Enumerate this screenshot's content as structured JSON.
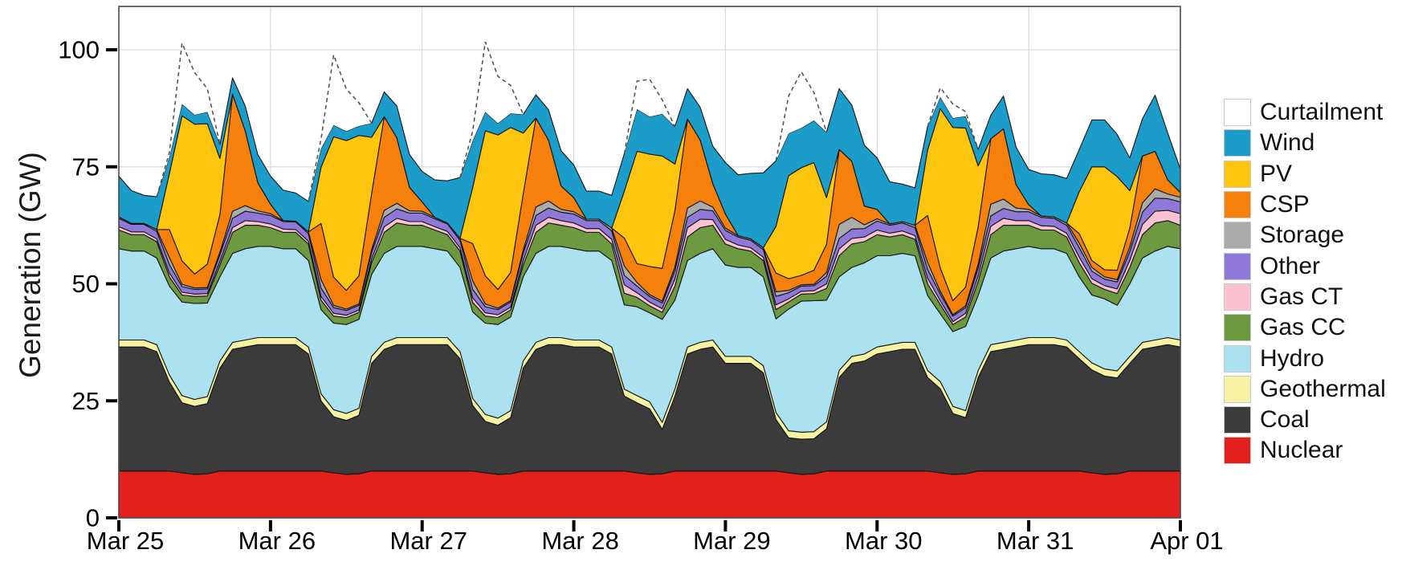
{
  "figure_title": "",
  "chart_data": {
    "type": "area",
    "subtype": "stacked-area-dispatch",
    "title": "",
    "xlabel": "",
    "ylabel": "Generation (GW)",
    "x_unit": "hours, 2-hour resolution over 7 days",
    "x_start_hour": 0,
    "x_step_hours": 2,
    "x_tick_labels": [
      "Mar 25",
      "Mar 26",
      "Mar 27",
      "Mar 28",
      "Mar 29",
      "Mar 30",
      "Mar 31",
      "Apr 01"
    ],
    "y_ticks": [
      0,
      25,
      50,
      75,
      100
    ],
    "y_tick_labels": [
      "0",
      "25",
      "50",
      "75",
      "100"
    ],
    "ylim": [
      0,
      109
    ],
    "grid": "on",
    "legend_position": "right-outside",
    "colors": {
      "area_outline": "#141414",
      "dashed_curtailment_line": "#555555",
      "gridline": "#d9d9d9",
      "frame": "#4a4a4a",
      "tick": "#000000"
    },
    "dashed_line_meaning": "top boundary of curtailment (available VRE above served stack)",
    "series": [
      {
        "name": "nuclear",
        "label": "Nuclear",
        "color": "#E4201C",
        "values": [
          10,
          10,
          10,
          10,
          10,
          9.6,
          9.3,
          9.4,
          10,
          10,
          10,
          10,
          10,
          10,
          10,
          10,
          10,
          9.6,
          9.3,
          9.4,
          10,
          10,
          10,
          10,
          10,
          10,
          10,
          10,
          10,
          9.6,
          9.3,
          9.4,
          10,
          10,
          10,
          10,
          10,
          10,
          10,
          10,
          10,
          9.6,
          9.3,
          9.4,
          10,
          10,
          10,
          10,
          10,
          10,
          10,
          10,
          10,
          9.6,
          9.3,
          9.4,
          10,
          10,
          10,
          10,
          10,
          10,
          10,
          10,
          10,
          9.6,
          9.3,
          9.4,
          10,
          10,
          10,
          10,
          10,
          10,
          10,
          10,
          10,
          9.6,
          9.3,
          9.4,
          10,
          10,
          10,
          10,
          10
        ]
      },
      {
        "name": "coal",
        "label": "Coal",
        "color": "#3B3B3B",
        "values": [
          26.5,
          26.5,
          26.5,
          25.5,
          19,
          15,
          14.5,
          15,
          22,
          26,
          26.5,
          27,
          27,
          27,
          27,
          25,
          15,
          12,
          11.5,
          12.5,
          23,
          26,
          27,
          27,
          27,
          27,
          27,
          24,
          14,
          11,
          10.5,
          12,
          22,
          26,
          27,
          27,
          26.5,
          26.5,
          26.5,
          25,
          16,
          15,
          14,
          9.5,
          16,
          25,
          26,
          26.5,
          23,
          23,
          23,
          21,
          11,
          7.5,
          7.5,
          7.5,
          9,
          20,
          23,
          23.5,
          25,
          25.5,
          26,
          26,
          20,
          18,
          13,
          12,
          20,
          25.5,
          26,
          26.5,
          27,
          27,
          27,
          26.5,
          24,
          22,
          21,
          20.5,
          23,
          26,
          26.5,
          27,
          26.5
        ]
      },
      {
        "name": "geothermal",
        "label": "Geothermal",
        "color": "#F8F3A3",
        "values": [
          1.5,
          1.5,
          1.5,
          1.5,
          1.5,
          1.5,
          1.5,
          1.5,
          1.5,
          1.5,
          1.5,
          1.5,
          1.5,
          1.5,
          1.5,
          1.5,
          1.5,
          1.5,
          1.5,
          1.5,
          1.5,
          1.5,
          1.5,
          1.5,
          1.5,
          1.5,
          1.5,
          1.5,
          1.5,
          1.5,
          1.5,
          1.5,
          1.5,
          1.5,
          1.5,
          1.5,
          1.5,
          1.5,
          1.5,
          1.5,
          1.5,
          1.5,
          1.5,
          1.5,
          1.5,
          1.5,
          1.5,
          1.5,
          1.5,
          1.5,
          1.5,
          1.5,
          1.5,
          1.5,
          1.5,
          1.5,
          1.5,
          1.5,
          1.5,
          1.5,
          1.5,
          1.5,
          1.5,
          1.5,
          1.5,
          1.5,
          1.5,
          1.5,
          1.5,
          1.5,
          1.5,
          1.5,
          1.5,
          1.5,
          1.5,
          1.5,
          1.5,
          1.5,
          1.5,
          1.5,
          1.5,
          1.5,
          1.5,
          1.5,
          1.5
        ]
      },
      {
        "name": "hydro",
        "label": "Hydro",
        "color": "#ACE2EF",
        "values": [
          19.5,
          19,
          19,
          18.5,
          19,
          20,
          20.5,
          20,
          18,
          19,
          19.5,
          19.5,
          19.5,
          19,
          19,
          18.5,
          18,
          18.5,
          19,
          19,
          17.5,
          19,
          19.5,
          19.5,
          19.5,
          19,
          18.5,
          18,
          18.5,
          19.5,
          20,
          20,
          18,
          19,
          19.5,
          19.5,
          19.5,
          19,
          19,
          18.5,
          18,
          19,
          19,
          22,
          19,
          18.5,
          19,
          19.5,
          19.5,
          19,
          19,
          19,
          20,
          26,
          28,
          28,
          26,
          20,
          19,
          19.5,
          19.5,
          19,
          19,
          18.5,
          16,
          14.5,
          16,
          18,
          16,
          18.5,
          19.5,
          19.5,
          19.5,
          19,
          19,
          18.5,
          16,
          14.5,
          15,
          14,
          15.5,
          18,
          19,
          19.5,
          19.5
        ]
      },
      {
        "name": "gas_cc",
        "label": "Gas CC",
        "color": "#6D9A41",
        "values": [
          4,
          3.5,
          3.5,
          3.5,
          2,
          1.5,
          1.5,
          1.5,
          2.5,
          4.5,
          5,
          4.5,
          4,
          3.5,
          3.5,
          3.5,
          2,
          1.5,
          1.5,
          1.5,
          2.5,
          4.5,
          5,
          4.5,
          4.5,
          4,
          3.5,
          3.5,
          2,
          1.5,
          1.5,
          1.5,
          2.5,
          4.5,
          5,
          4.5,
          4.5,
          4,
          4,
          3.5,
          2.5,
          2,
          1.5,
          1.5,
          3,
          5,
          5.5,
          5,
          4.5,
          4,
          3.5,
          3.5,
          2,
          1.5,
          1.5,
          1.5,
          2.5,
          4.5,
          5,
          4.5,
          4.5,
          4,
          4,
          3.5,
          2.5,
          2,
          1.5,
          2,
          3,
          5,
          5.5,
          5,
          4.5,
          4,
          4,
          3.5,
          3,
          2.5,
          2,
          2.5,
          3.5,
          5,
          6,
          5.5,
          5
        ]
      },
      {
        "name": "gas_ct",
        "label": "Gas CT",
        "color": "#FBC3D2",
        "values": [
          0.7,
          0.6,
          0.6,
          0.6,
          0.8,
          0.6,
          0.5,
          0.5,
          0.8,
          1,
          1,
          0.8,
          0.8,
          0.7,
          0.6,
          0.6,
          0.8,
          0.6,
          0.5,
          0.5,
          0.8,
          1.2,
          1,
          0.8,
          0.8,
          0.7,
          0.7,
          0.7,
          1,
          0.7,
          0.6,
          0.6,
          1,
          1.5,
          1.2,
          1,
          1,
          0.8,
          0.8,
          1,
          1.8,
          1,
          0.8,
          0.8,
          1.5,
          2,
          1.8,
          1.2,
          1,
          0.8,
          0.7,
          0.7,
          1,
          0.7,
          0.6,
          0.6,
          1,
          1.5,
          1.2,
          1,
          1,
          0.8,
          0.8,
          0.8,
          1.2,
          0.8,
          0.6,
          0.8,
          1.2,
          1.8,
          1.5,
          1,
          1,
          0.9,
          0.8,
          0.8,
          1.2,
          1,
          0.8,
          1,
          1.5,
          2.2,
          2.5,
          2.2,
          2.5
        ]
      },
      {
        "name": "other",
        "label": "Other",
        "color": "#8F79D8",
        "values": [
          1.8,
          1.6,
          1.6,
          1.6,
          1.8,
          1.2,
          1,
          1,
          1.5,
          2,
          2,
          1.8,
          1.8,
          1.6,
          1.6,
          1.6,
          1.8,
          1.2,
          1,
          1,
          1.5,
          2,
          2,
          1.8,
          1.8,
          1.7,
          1.6,
          1.6,
          1.8,
          1.3,
          1.1,
          1.1,
          1.6,
          2.1,
          2,
          1.8,
          1.9,
          1.7,
          1.7,
          1.8,
          2,
          1.4,
          1.2,
          1.2,
          1.8,
          2.2,
          2.1,
          1.9,
          1.9,
          1.7,
          1.6,
          1.6,
          1.8,
          1.3,
          1.1,
          1.1,
          1.6,
          2.2,
          2,
          1.8,
          1.9,
          1.7,
          1.7,
          1.7,
          1.9,
          1.4,
          1.2,
          1.2,
          1.7,
          2.2,
          2.1,
          1.9,
          1.9,
          1.8,
          1.7,
          1.7,
          2,
          1.6,
          1.4,
          1.5,
          1.9,
          2.6,
          2.8,
          2.5,
          2.5
        ]
      },
      {
        "name": "storage",
        "label": "Storage",
        "color": "#ABABAB",
        "values": [
          0.3,
          0.2,
          0.2,
          0.4,
          1.5,
          0.5,
          0.3,
          0.3,
          0.5,
          1.5,
          1.2,
          0.5,
          0.4,
          0.2,
          0.2,
          0.4,
          1.8,
          0.5,
          0.3,
          0.3,
          0.5,
          1.5,
          1.2,
          0.5,
          0.4,
          0.3,
          0.2,
          0.4,
          1.8,
          0.6,
          0.3,
          0.3,
          0.6,
          1.8,
          1.5,
          0.6,
          0.5,
          0.3,
          0.3,
          0.6,
          2,
          0.8,
          0.4,
          0.4,
          0.8,
          2,
          1.8,
          0.8,
          0.5,
          0.3,
          0.3,
          0.4,
          1,
          0.5,
          0.3,
          0.3,
          0.8,
          3,
          2.5,
          0.8,
          0.5,
          0.3,
          0.3,
          0.5,
          1.5,
          0.6,
          0.3,
          0.4,
          0.8,
          2.5,
          2,
          0.8,
          0.5,
          0.3,
          0.3,
          0.5,
          1,
          0.8,
          0.5,
          0.5,
          1,
          2,
          2,
          1,
          1
        ]
      },
      {
        "name": "csp",
        "label": "CSP",
        "color": "#F5800B",
        "values": [
          0,
          0,
          0,
          0,
          6,
          5,
          3,
          5,
          8,
          25,
          16,
          6,
          2,
          0,
          0,
          0,
          12,
          6,
          4,
          6,
          12,
          20,
          14,
          5,
          2,
          0,
          0,
          0,
          8,
          6,
          4,
          6,
          12,
          19,
          13,
          5,
          3,
          0,
          0,
          0,
          6,
          4,
          6,
          7,
          12,
          19,
          13,
          5,
          3,
          0,
          0,
          0,
          4,
          2.5,
          2,
          3,
          6,
          16,
          12,
          4,
          2,
          0,
          0,
          0,
          10,
          5,
          3,
          4,
          8,
          14,
          15,
          5,
          1,
          0,
          0,
          0,
          2,
          1.5,
          1.5,
          2,
          4,
          10,
          8,
          3,
          1
        ]
      },
      {
        "name": "pv",
        "label": "PV",
        "color": "#FEC50F",
        "values": [
          0,
          0,
          0,
          0,
          12,
          31,
          32,
          30,
          12,
          0,
          0,
          0,
          0,
          0,
          0,
          0,
          12,
          30,
          32,
          30,
          12,
          0,
          0,
          0,
          0,
          0,
          0,
          0,
          12,
          31,
          33,
          31,
          13,
          0,
          0,
          0,
          0,
          0,
          0,
          0,
          10,
          24,
          24,
          24,
          10,
          0,
          0,
          0,
          0,
          0,
          0,
          0,
          10,
          22,
          23,
          23,
          10,
          0,
          0,
          0,
          0,
          0,
          0,
          0,
          14,
          34,
          37,
          34,
          13,
          0,
          0,
          0,
          0,
          0,
          0,
          0,
          9,
          20,
          22,
          20,
          8,
          0,
          0,
          0,
          0
        ]
      },
      {
        "name": "wind",
        "label": "Wind",
        "color": "#1B9CC9",
        "values": [
          8.7,
          7,
          6,
          7,
          3.5,
          2.5,
          2,
          2.5,
          3,
          3.5,
          5.3,
          6,
          6,
          6.5,
          6,
          6.5,
          4,
          2.5,
          2,
          2,
          3,
          5.3,
          6.8,
          7,
          6.5,
          8,
          9,
          13,
          10,
          4,
          2.5,
          3,
          4,
          5,
          6.5,
          7.5,
          7,
          6,
          6,
          7,
          8,
          9,
          8,
          9,
          8,
          6.5,
          7,
          8,
          11,
          13,
          14,
          16,
          14,
          9,
          8.5,
          9,
          14,
          13,
          12,
          13,
          11,
          9,
          8,
          8,
          5,
          2.5,
          2,
          2.5,
          3.5,
          5,
          7,
          8,
          7.5,
          9,
          9,
          9.5,
          9,
          10,
          10,
          9,
          7,
          8,
          12,
          10,
          5
        ]
      },
      {
        "name": "curtailment",
        "label": "Curtailment",
        "color": "#FFFFFF",
        "dashed_top": true,
        "values": [
          0,
          0,
          0,
          0,
          1,
          13,
          9,
          5,
          0,
          0,
          0,
          0,
          0,
          0,
          0,
          0,
          2,
          15,
          9,
          5,
          0,
          0,
          0,
          0,
          0,
          0,
          0,
          0,
          2,
          15,
          10,
          6,
          0,
          0,
          0,
          0,
          0,
          0,
          0,
          0,
          0,
          6,
          8,
          3,
          0,
          0,
          0,
          0,
          0,
          0,
          0,
          0,
          0,
          8,
          12,
          6,
          0,
          0,
          0,
          0,
          0,
          0,
          0,
          0,
          0,
          2,
          3,
          1,
          0,
          0,
          0,
          0,
          0,
          0,
          0,
          0,
          0,
          0,
          0,
          0,
          0,
          0,
          0,
          0,
          0
        ]
      }
    ],
    "legend": [
      {
        "name": "curtailment",
        "label": "Curtailment",
        "color": "#FFFFFF"
      },
      {
        "name": "wind",
        "label": "Wind",
        "color": "#1B9CC9"
      },
      {
        "name": "pv",
        "label": "PV",
        "color": "#FEC50F"
      },
      {
        "name": "csp",
        "label": "CSP",
        "color": "#F5800B"
      },
      {
        "name": "storage",
        "label": "Storage",
        "color": "#ABABAB"
      },
      {
        "name": "other",
        "label": "Other",
        "color": "#8F79D8"
      },
      {
        "name": "gas_ct",
        "label": "Gas CT",
        "color": "#FBC3D2"
      },
      {
        "name": "gas_cc",
        "label": "Gas CC",
        "color": "#6D9A41"
      },
      {
        "name": "hydro",
        "label": "Hydro",
        "color": "#ACE2EF"
      },
      {
        "name": "geothermal",
        "label": "Geothermal",
        "color": "#F8F3A3"
      },
      {
        "name": "coal",
        "label": "Coal",
        "color": "#3B3B3B"
      },
      {
        "name": "nuclear",
        "label": "Nuclear",
        "color": "#E4201C"
      }
    ]
  }
}
